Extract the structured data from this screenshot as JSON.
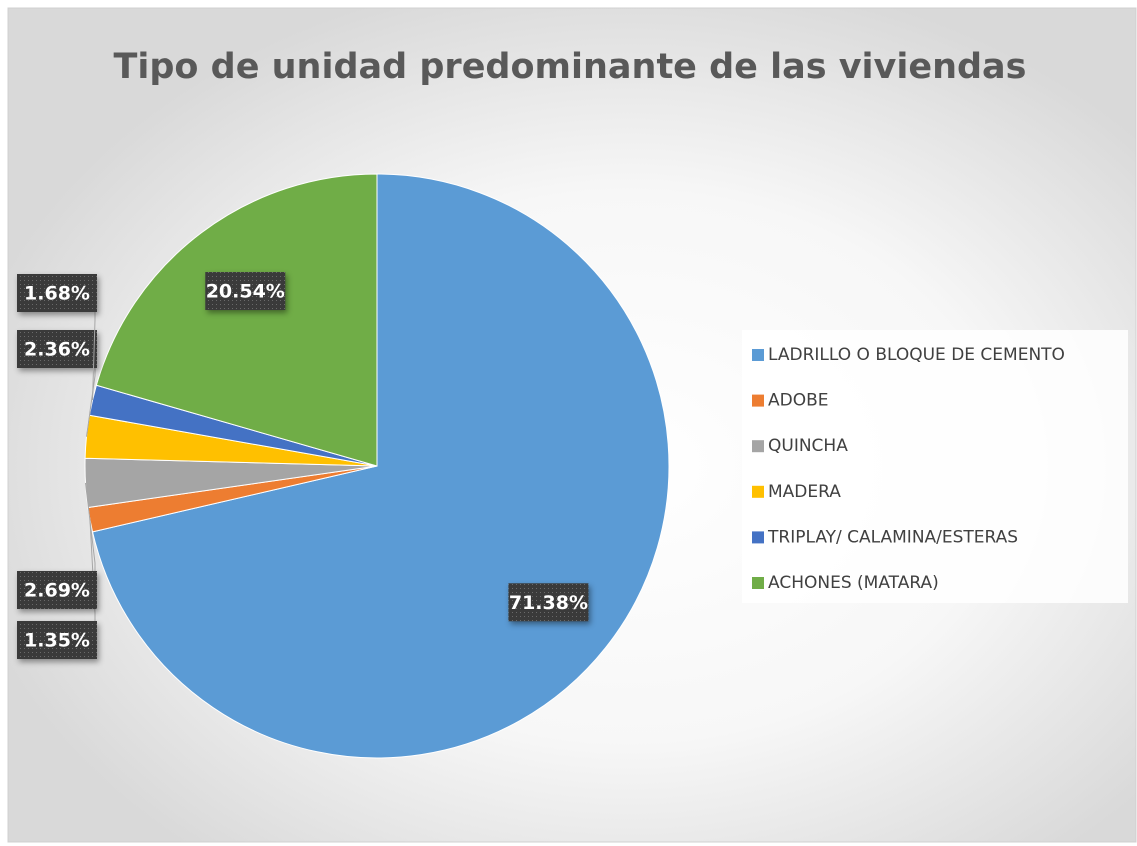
{
  "chart_data": {
    "type": "pie",
    "title": "Tipo de unidad predominante de las viviendas",
    "categories": [
      "LADRILLO O BLOQUE DE CEMENTO",
      "ADOBE",
      "QUINCHA",
      "MADERA",
      "TRIPLAY/ CALAMINA/ESTERAS",
      "ACHONES (MATARA)"
    ],
    "values": [
      71.38,
      1.35,
      2.69,
      2.36,
      1.68,
      20.54
    ],
    "value_labels": [
      "71.38%",
      "1.35%",
      "2.69%",
      "2.36%",
      "1.68%",
      "20.54%"
    ],
    "colors": [
      "#5b9bd5",
      "#ed7d31",
      "#a5a5a5",
      "#ffc000",
      "#4472c4",
      "#70ad47"
    ],
    "legend": "right"
  }
}
